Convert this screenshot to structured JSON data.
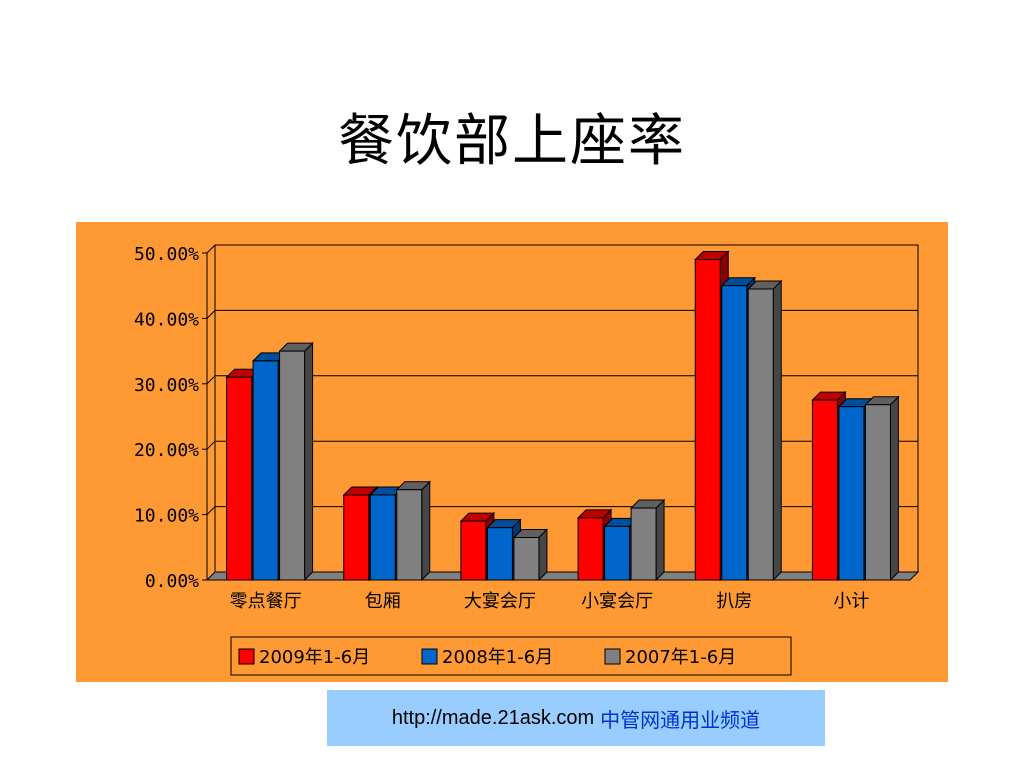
{
  "title": "餐饮部上座率",
  "footer": {
    "url": "http://made.21ask.com",
    "channel": "中管网通用业频道"
  },
  "colors": {
    "panel": "#FF9933",
    "footer": "#99CCFF"
  },
  "chart_data": {
    "type": "bar",
    "style": "3d-clustered",
    "title": "",
    "xlabel": "",
    "ylabel": "",
    "ylim": [
      0,
      0.5
    ],
    "y_ticks": [
      "0.00%",
      "10.00%",
      "20.00%",
      "30.00%",
      "40.00%",
      "50.00%"
    ],
    "grid": true,
    "legend_position": "bottom",
    "categories": [
      "零点餐厅",
      "包厢",
      "大宴会厅",
      "小宴会厅",
      "扒房",
      "小计"
    ],
    "series": [
      {
        "name": "2009年1-6月",
        "color": "#FF0000",
        "values": [
          0.31,
          0.13,
          0.09,
          0.095,
          0.49,
          0.275
        ]
      },
      {
        "name": "2008年1-6月",
        "color": "#0066CC",
        "values": [
          0.335,
          0.13,
          0.08,
          0.082,
          0.45,
          0.265
        ]
      },
      {
        "name": "2007年1-6月",
        "color": "#808080",
        "values": [
          0.35,
          0.138,
          0.065,
          0.11,
          0.445,
          0.268
        ]
      }
    ]
  }
}
